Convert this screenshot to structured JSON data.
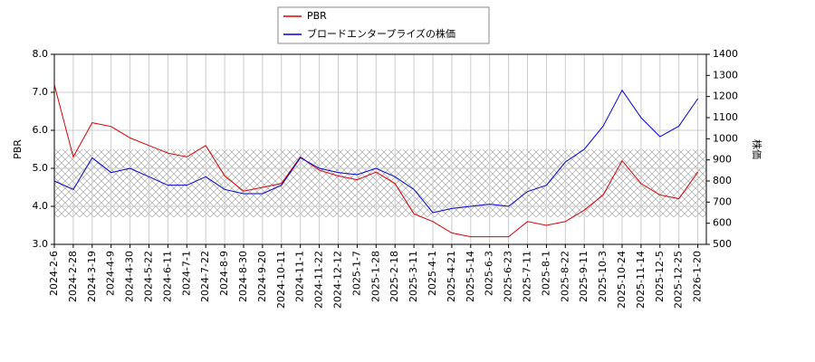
{
  "chart_data": {
    "type": "line",
    "categories": [
      "2024-2-6",
      "2024-2-28",
      "2024-3-19",
      "2024-4-9",
      "2024-4-30",
      "2024-5-22",
      "2024-6-11",
      "2024-7-1",
      "2024-7-22",
      "2024-8-9",
      "2024-8-30",
      "2024-9-20",
      "2024-10-11",
      "2024-11-1",
      "2024-11-22",
      "2024-12-12",
      "2025-1-7",
      "2025-1-28",
      "2025-2-18",
      "2025-3-11",
      "2025-4-1",
      "2025-4-21",
      "2025-5-14",
      "2025-6-3",
      "2025-6-23",
      "2025-7-11",
      "2025-8-1",
      "2025-8-22",
      "2025-9-11",
      "2025-10-3",
      "2025-10-24",
      "2025-11-14",
      "2025-12-5",
      "2025-12-25",
      "2026-1-20"
    ],
    "series": [
      {
        "name": "PBR",
        "color": "#dd0000",
        "values": [
          7.2,
          5.3,
          6.2,
          6.1,
          5.8,
          5.6,
          5.4,
          5.3,
          5.6,
          4.8,
          4.4,
          4.5,
          4.6,
          5.3,
          4.95,
          4.8,
          4.7,
          4.9,
          4.6,
          3.8,
          3.6,
          3.3,
          3.2,
          3.2,
          3.2,
          3.6,
          3.5,
          3.6,
          3.9,
          4.3,
          5.2,
          4.6,
          4.3,
          4.2,
          4.9
        ]
      },
      {
        "name": "ブロードエンタープライズの株価",
        "color": "#0000dd",
        "axis": "y2",
        "values": [
          800,
          760,
          910,
          840,
          860,
          820,
          780,
          780,
          820,
          760,
          740,
          740,
          780,
          910,
          860,
          840,
          830,
          860,
          820,
          760,
          650,
          670,
          680,
          690,
          680,
          750,
          780,
          890,
          950,
          1060,
          1230,
          1100,
          1010,
          1060,
          1190
        ]
      }
    ],
    "ylabel": "PBR",
    "y2label": "株価",
    "ylim": [
      3,
      8
    ],
    "yticks": [
      {
        "value": 3,
        "label": "3.0"
      },
      {
        "value": 4,
        "label": "4.0"
      },
      {
        "value": 5,
        "label": "5.0"
      },
      {
        "value": 6,
        "label": "6.0"
      },
      {
        "value": 7,
        "label": "7.0"
      },
      {
        "value": 8,
        "label": "8.0"
      }
    ],
    "y2lim": [
      500,
      1400
    ],
    "y2ticks": [
      500,
      600,
      700,
      800,
      900,
      1000,
      1100,
      1200,
      1300,
      1400
    ],
    "grid": true,
    "legend": "top"
  }
}
